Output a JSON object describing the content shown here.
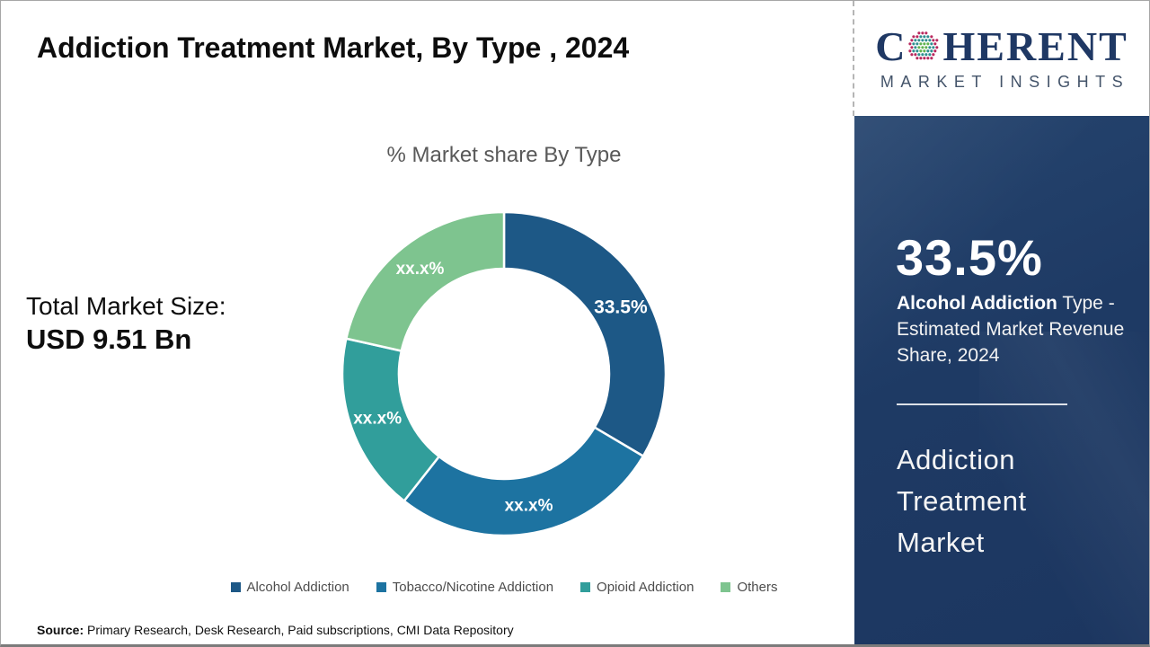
{
  "header": {
    "title": "Addiction Treatment Market, By Type , 2024"
  },
  "logo": {
    "name": "Coherent Market Insights",
    "word_start": "C",
    "word_end": "HERENT",
    "tagline": "MARKET INSIGHTS",
    "text_color": "#1f3864",
    "tagline_color": "#44546a",
    "globe_colors": [
      "#b8295e",
      "#2e8f90",
      "#5fb350"
    ]
  },
  "left_panel": {
    "total_market_label": "Total Market Size:",
    "total_market_value": "USD 9.51 Bn"
  },
  "chart_data": {
    "type": "pie",
    "variant": "donut",
    "title": "% Market share By Type",
    "categories": [
      "Alcohol Addiction",
      "Tobacco/Nicotine Addiction",
      "Opioid Addiction",
      "Others"
    ],
    "values": [
      33.5,
      27.1,
      17.9,
      21.5
    ],
    "value_labels": [
      "33.5%",
      "xx.x%",
      "xx.x%",
      "xx.x%"
    ],
    "colors": [
      "#1d5886",
      "#1d73a1",
      "#319e9b",
      "#7ec48f"
    ],
    "start_angle_deg": 0,
    "direction": "clockwise",
    "inner_radius_ratio": 0.65,
    "legend_position": "bottom"
  },
  "sidebar": {
    "bg_color": "#1f3a66",
    "stat_value": "33.5%",
    "stat_desc_bold": "Alcohol Addiction",
    "stat_desc_rest": " Type - Estimated Market Revenue Share, 2024",
    "market_name": "Addiction Treatment Market"
  },
  "footer": {
    "source_label": "Source:",
    "source_text": " Primary Research, Desk Research, Paid subscriptions, CMI Data Repository"
  }
}
